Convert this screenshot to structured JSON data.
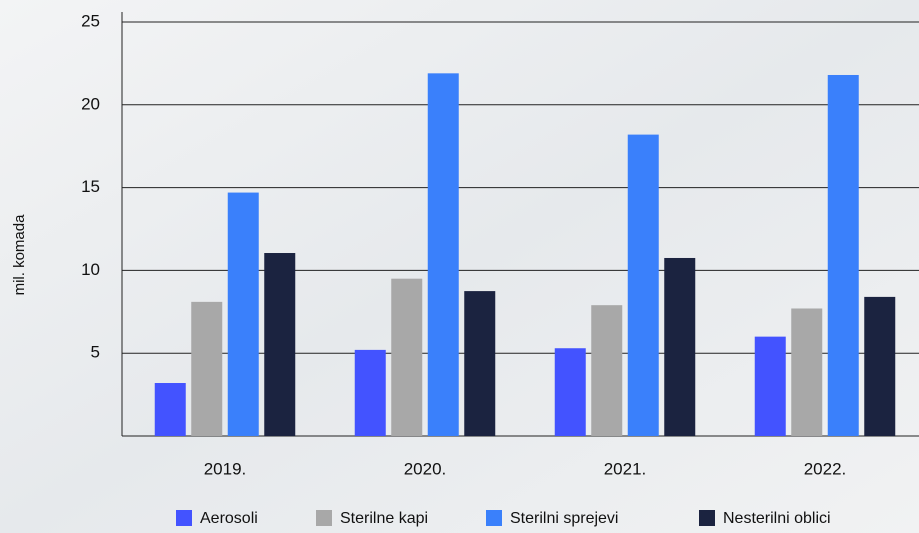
{
  "chart_data": {
    "type": "bar",
    "y_label": "mil. komada",
    "categories": [
      "2019.",
      "2020.",
      "2021.",
      "2022."
    ],
    "series": [
      {
        "name": "Aerosoli",
        "color": "#4353ff",
        "values": [
          3.2,
          5.2,
          5.3,
          6.0
        ]
      },
      {
        "name": "Sterilne kapi",
        "color": "#a8a8a8",
        "values": [
          8.1,
          9.5,
          7.9,
          7.7
        ]
      },
      {
        "name": "Sterilni sprejevi",
        "color": "#3a80fb",
        "values": [
          14.7,
          21.9,
          18.2,
          21.8
        ]
      },
      {
        "name": "Nesterilni oblici",
        "color": "#1b2340",
        "values": [
          11.05,
          8.75,
          10.75,
          8.4
        ]
      }
    ],
    "ylim": [
      0,
      25
    ],
    "yticks": [
      5,
      10,
      15,
      20,
      25
    ],
    "grid": true
  }
}
